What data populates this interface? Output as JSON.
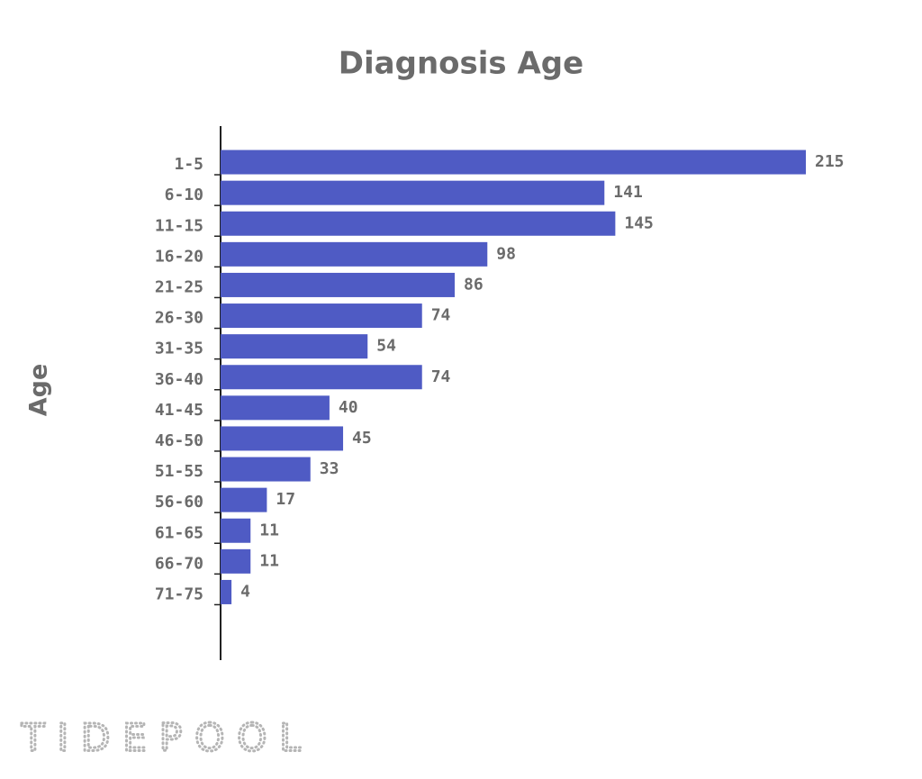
{
  "brand": "TIDEPOOL",
  "chart_data": {
    "type": "barh",
    "title": "Diagnosis Age",
    "y_label": "Age",
    "categories": [
      "1-5",
      "6-10",
      "11-15",
      "16-20",
      "21-25",
      "26-30",
      "31-35",
      "36-40",
      "41-45",
      "46-50",
      "51-55",
      "56-60",
      "61-65",
      "66-70",
      "71-75"
    ],
    "values": [
      215,
      141,
      145,
      98,
      86,
      74,
      54,
      74,
      40,
      45,
      33,
      17,
      11,
      11,
      4
    ],
    "color": "#4f5bc4",
    "xlim": [
      0,
      215
    ]
  }
}
